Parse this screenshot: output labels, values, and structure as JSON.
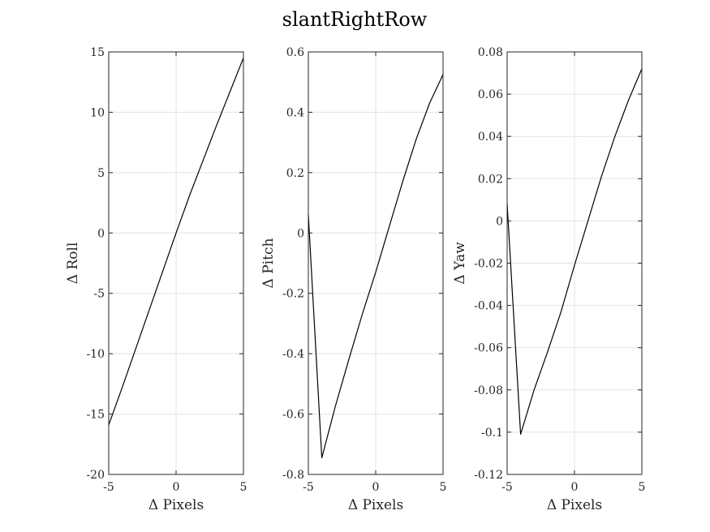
{
  "figure": {
    "title": "slantRightRow"
  },
  "chart_data": [
    {
      "type": "line",
      "xlabel": "Δ Pixels",
      "ylabel": "Δ Roll",
      "xlim": [
        -5,
        5
      ],
      "ylim": [
        -20,
        15
      ],
      "xticks": [
        -5,
        0,
        5
      ],
      "yticks": [
        -20,
        -15,
        -10,
        -5,
        0,
        5,
        10,
        15
      ],
      "xtick_labels": [
        "-5",
        "0",
        "5"
      ],
      "ytick_labels": [
        "-20",
        "-15",
        "-10",
        "-5",
        "0",
        "5",
        "10",
        "15"
      ],
      "grid": true,
      "series": [
        {
          "x": [
            -5,
            -4,
            -3,
            -2,
            -1,
            0,
            1,
            2,
            3,
            4,
            5
          ],
          "y": [
            -15.9,
            -12.8,
            -9.6,
            -6.4,
            -3.2,
            0,
            3.1,
            6.0,
            8.9,
            11.7,
            14.5
          ]
        }
      ]
    },
    {
      "type": "line",
      "xlabel": "Δ Pixels",
      "ylabel": "Δ Pitch",
      "xlim": [
        -5,
        5
      ],
      "ylim": [
        -0.8,
        0.6
      ],
      "xticks": [
        -5,
        0,
        5
      ],
      "yticks": [
        -0.8,
        -0.6,
        -0.4,
        -0.2,
        0,
        0.2,
        0.4,
        0.6
      ],
      "xtick_labels": [
        "-5",
        "0",
        "5"
      ],
      "ytick_labels": [
        "-0.8",
        "-0.6",
        "-0.4",
        "-0.2",
        "0",
        "0.2",
        "0.4",
        "0.6"
      ],
      "grid": true,
      "series": [
        {
          "x": [
            -5,
            -4,
            -3,
            -2,
            -1,
            0,
            1,
            2,
            3,
            4,
            5
          ],
          "y": [
            0.06,
            -0.745,
            -0.575,
            -0.42,
            -0.27,
            -0.13,
            0.02,
            0.17,
            0.31,
            0.43,
            0.525
          ]
        }
      ]
    },
    {
      "type": "line",
      "xlabel": "Δ Pixels",
      "ylabel": "Δ Yaw",
      "xlim": [
        -5,
        5
      ],
      "ylim": [
        -0.12,
        0.08
      ],
      "xticks": [
        -5,
        0,
        5
      ],
      "yticks": [
        -0.12,
        -0.1,
        -0.08,
        -0.06,
        -0.04,
        -0.02,
        0,
        0.02,
        0.04,
        0.06,
        0.08
      ],
      "xtick_labels": [
        "-5",
        "0",
        "5"
      ],
      "ytick_labels": [
        "-0.12",
        "-0.1",
        "-0.08",
        "-0.06",
        "-0.04",
        "-0.02",
        "0",
        "0.02",
        "0.04",
        "0.06",
        "0.08"
      ],
      "grid": true,
      "series": [
        {
          "x": [
            -5,
            -4,
            -3,
            -2,
            -1,
            0,
            1,
            2,
            3,
            4,
            5
          ],
          "y": [
            0.008,
            -0.101,
            -0.08,
            -0.062,
            -0.043,
            -0.021,
            0.0,
            0.021,
            0.04,
            0.057,
            0.072
          ]
        }
      ]
    }
  ]
}
